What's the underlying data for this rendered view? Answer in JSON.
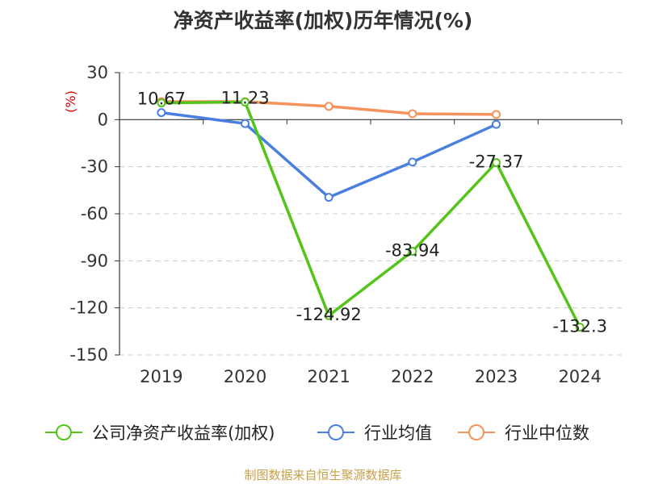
{
  "chart_data": {
    "type": "line",
    "title": "净资产收益率(加权)历年情况(%)",
    "ylabel": "(%)",
    "categories": [
      "2019",
      "2020",
      "2021",
      "2022",
      "2023",
      "2024"
    ],
    "ylim": [
      -150,
      30
    ],
    "yticks": [
      30,
      0,
      -30,
      -60,
      -90,
      -120,
      -150
    ],
    "grid": true,
    "legend_position": "bottom",
    "series": [
      {
        "name": "公司净资产收益率(加权)",
        "color": "#52c41a",
        "marker": "hollow-circle",
        "values": [
          10.67,
          11.23,
          -124.92,
          -83.94,
          -27.37,
          -132.3
        ],
        "labels": [
          "10.67",
          "11.23",
          "-124.92",
          "-83.94",
          "-27.37",
          "-132.3"
        ]
      },
      {
        "name": "行业均值",
        "color": "#4a7fe0",
        "marker": "hollow-circle",
        "values": [
          4.5,
          -2.5,
          -49.5,
          -27,
          -3,
          null
        ]
      },
      {
        "name": "行业中位数",
        "color": "#f6925c",
        "marker": "hollow-circle",
        "values": [
          11.5,
          11.5,
          8.5,
          3.8,
          3.3,
          null
        ]
      }
    ]
  },
  "source": "制图数据来自恒生聚源数据库"
}
